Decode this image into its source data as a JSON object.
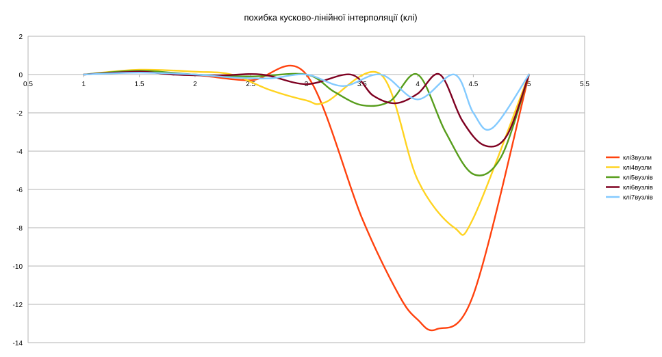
{
  "chart_data": {
    "type": "line",
    "title": "похибка кусково-лінійної інтерполяції (клі)",
    "xlabel": "",
    "ylabel": "",
    "xlim": [
      0.5,
      5.5
    ],
    "ylim": [
      -14,
      2
    ],
    "x_ticks": [
      "0.5",
      "1",
      "1.5",
      "2",
      "2.5",
      "3",
      "3.5",
      "4",
      "4.5",
      "5",
      "5.5"
    ],
    "y_ticks": [
      "2",
      "0",
      "-2",
      "-4",
      "-6",
      "-8",
      "-10",
      "-12",
      "-14"
    ],
    "grid": "horizontal",
    "legend_position": "right",
    "series": [
      {
        "name": "клі3вузли",
        "color": "#ff420e",
        "x": [
          1.0,
          1.5,
          2.0,
          2.5,
          3.0,
          3.5,
          3.83,
          4.0,
          4.17,
          4.5,
          5.0
        ],
        "y": [
          0.0,
          0.12,
          -0.02,
          -0.3,
          0.0,
          -7.5,
          -11.5,
          -12.8,
          -13.3,
          -11.5,
          0.0
        ]
      },
      {
        "name": "клі4вузли",
        "color": "#ffd320",
        "x": [
          1.0,
          1.5,
          2.0,
          2.33,
          2.67,
          3.0,
          3.17,
          3.67,
          4.0,
          4.33,
          4.5,
          5.0
        ],
        "y": [
          0.0,
          0.25,
          0.15,
          0.0,
          -0.8,
          -1.35,
          -1.45,
          0.0,
          -5.5,
          -8.0,
          -7.5,
          0.0
        ]
      },
      {
        "name": "клі5вузлів",
        "color": "#579d1c",
        "x": [
          1.0,
          1.5,
          2.0,
          2.5,
          3.0,
          3.25,
          3.5,
          3.75,
          4.0,
          4.25,
          4.5,
          4.75,
          5.0
        ],
        "y": [
          0.0,
          0.2,
          0.0,
          -0.1,
          0.0,
          -0.9,
          -1.6,
          -1.4,
          0.0,
          -3.0,
          -5.2,
          -4.3,
          0.0
        ]
      },
      {
        "name": "клі6вузлів",
        "color": "#7e0021",
        "x": [
          1.0,
          1.5,
          1.8,
          2.2,
          2.6,
          3.0,
          3.4,
          3.6,
          3.8,
          4.0,
          4.2,
          4.4,
          4.6,
          4.8,
          5.0
        ],
        "y": [
          0.0,
          0.15,
          0.0,
          -0.05,
          0.0,
          -0.5,
          0.0,
          -1.1,
          -1.5,
          -1.0,
          0.0,
          -2.4,
          -3.7,
          -3.2,
          0.0
        ]
      },
      {
        "name": "клі7вузлів",
        "color": "#83caff",
        "x": [
          1.0,
          1.5,
          2.0,
          2.33,
          2.67,
          3.0,
          3.33,
          3.67,
          4.0,
          4.33,
          4.5,
          4.67,
          5.0
        ],
        "y": [
          0.0,
          0.1,
          0.0,
          -0.15,
          -0.2,
          0.0,
          -0.6,
          0.0,
          -1.3,
          0.0,
          -2.0,
          -2.8,
          0.0
        ]
      }
    ]
  }
}
